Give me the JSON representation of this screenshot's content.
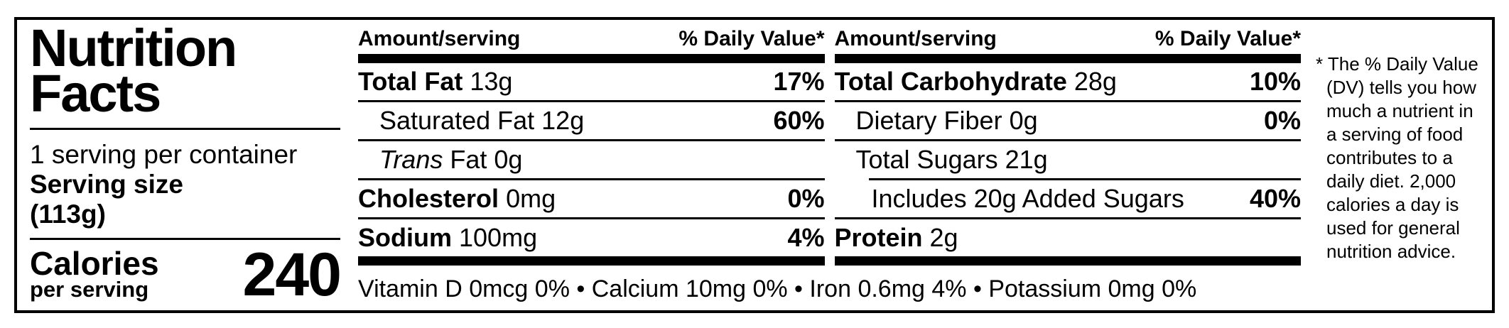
{
  "colors": {
    "text": "#000000",
    "background": "#ffffff",
    "bar": "#000000"
  },
  "label": {
    "title_line1": "Nutrition",
    "title_line2": "Facts",
    "servings_per_container": "1 serving per container",
    "serving_size_label": "Serving size",
    "serving_size_value": "(113g)",
    "calories": {
      "label": "Calories",
      "sublabel": "per serving",
      "value": "240"
    },
    "col1": {
      "header_amount": "Amount/serving",
      "header_dv": "% Daily Value*",
      "rows": [
        {
          "name": "Total Fat",
          "amount": "13g",
          "dv": "17%"
        },
        {
          "name": "Saturated Fat",
          "amount": "12g",
          "dv": "60%"
        },
        {
          "name_italic": "Trans",
          "name": "Fat",
          "amount": "0g"
        },
        {
          "name": "Cholesterol",
          "amount": "0mg",
          "dv": "0%"
        },
        {
          "name": "Sodium",
          "amount": "100mg",
          "dv": "4%"
        }
      ]
    },
    "col2": {
      "header_amount": "Amount/serving",
      "header_dv": "% Daily Value*",
      "rows": [
        {
          "name": "Total Carbohydrate",
          "amount": "28g",
          "dv": "10%"
        },
        {
          "name": "Dietary Fiber",
          "amount": "0g",
          "dv": "0%"
        },
        {
          "name": "Total Sugars",
          "amount": "21g"
        },
        {
          "name": "Includes 20g Added Sugars",
          "dv": "40%"
        },
        {
          "name": "Protein",
          "amount": "2g"
        }
      ]
    },
    "micronutrients": "Vitamin D 0mcg 0% • Calcium 10mg 0% • Iron 0.6mg 4% • Potassium 0mg 0%",
    "footnote": "* The % Daily Value (DV) tells you how much a nutrient in a serving of food contributes to a daily diet. 2,000 calories a day is used for general nutrition advice."
  }
}
